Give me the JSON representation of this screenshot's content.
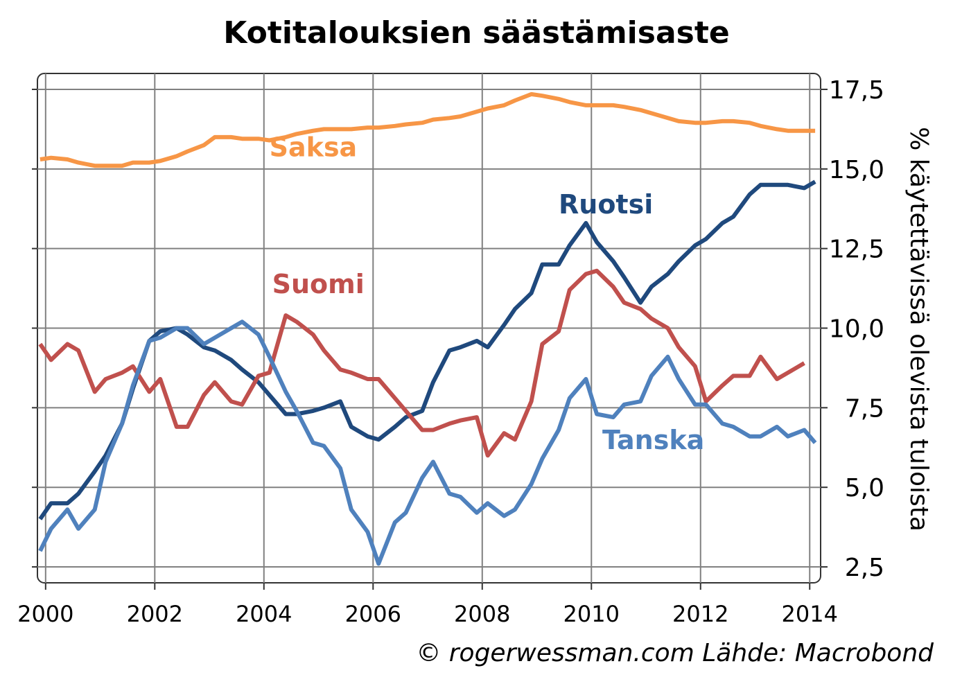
{
  "title": "Kotitalouksien säästämisaste",
  "source": "© rogerwessman.com Lähde: Macrobond",
  "chart_data": {
    "type": "line",
    "ylabel": "% käytettävissä olevista tuloista",
    "xlim": [
      1999.85,
      2014.2
    ],
    "ylim": [
      2.0,
      18.0
    ],
    "x_ticks": [
      2000,
      2002,
      2004,
      2006,
      2008,
      2010,
      2012,
      2014
    ],
    "x_tick_labels": [
      "2000",
      "2002",
      "2004",
      "2006",
      "2008",
      "2010",
      "2012",
      "2014"
    ],
    "y_ticks": [
      2.5,
      5.0,
      7.5,
      10.0,
      12.5,
      15.0,
      17.5
    ],
    "y_tick_labels": [
      "2,5",
      "5,0",
      "7,5",
      "10,0",
      "12,5",
      "15,0",
      "17,5"
    ],
    "y_axis_side": "right",
    "grid": true,
    "legend": "inline labels",
    "series": [
      {
        "name": "Saksa",
        "color": "#F79646",
        "label_at": [
          2004.1,
          15.4
        ],
        "x": [
          1999.9,
          2000.1,
          2000.4,
          2000.6,
          2000.9,
          2001.1,
          2001.4,
          2001.6,
          2001.9,
          2002.1,
          2002.4,
          2002.6,
          2002.9,
          2003.1,
          2003.4,
          2003.6,
          2003.9,
          2004.1,
          2004.4,
          2004.6,
          2004.9,
          2005.1,
          2005.4,
          2005.6,
          2005.9,
          2006.1,
          2006.4,
          2006.6,
          2006.9,
          2007.1,
          2007.4,
          2007.6,
          2007.9,
          2008.1,
          2008.4,
          2008.6,
          2008.9,
          2009.1,
          2009.4,
          2009.6,
          2009.9,
          2010.1,
          2010.4,
          2010.6,
          2010.9,
          2011.1,
          2011.4,
          2011.6,
          2011.9,
          2012.1,
          2012.4,
          2012.6,
          2012.9,
          2013.1,
          2013.4,
          2013.6,
          2013.9,
          2014.1
        ],
        "values": [
          15.3,
          15.35,
          15.3,
          15.2,
          15.1,
          15.1,
          15.1,
          15.2,
          15.2,
          15.25,
          15.4,
          15.55,
          15.75,
          16.0,
          16.0,
          15.95,
          15.95,
          15.9,
          16.0,
          16.1,
          16.2,
          16.25,
          16.25,
          16.25,
          16.3,
          16.3,
          16.35,
          16.4,
          16.45,
          16.55,
          16.6,
          16.65,
          16.8,
          16.9,
          17.0,
          17.15,
          17.35,
          17.3,
          17.2,
          17.1,
          17.0,
          17.0,
          17.0,
          16.95,
          16.85,
          16.75,
          16.6,
          16.5,
          16.45,
          16.45,
          16.5,
          16.5,
          16.45,
          16.35,
          16.25,
          16.2,
          16.2,
          16.2
        ]
      },
      {
        "name": "Ruotsi",
        "color": "#1F497D",
        "label_at": [
          2009.4,
          13.6
        ],
        "x": [
          1999.9,
          2000.1,
          2000.4,
          2000.6,
          2000.9,
          2001.1,
          2001.4,
          2001.6,
          2001.9,
          2002.1,
          2002.4,
          2002.6,
          2002.9,
          2003.1,
          2003.4,
          2003.6,
          2003.9,
          2004.1,
          2004.4,
          2004.6,
          2004.9,
          2005.1,
          2005.4,
          2005.6,
          2005.9,
          2006.1,
          2006.4,
          2006.6,
          2006.9,
          2007.1,
          2007.4,
          2007.6,
          2007.9,
          2008.1,
          2008.4,
          2008.6,
          2008.9,
          2009.1,
          2009.4,
          2009.6,
          2009.9,
          2010.1,
          2010.4,
          2010.6,
          2010.9,
          2011.1,
          2011.4,
          2011.6,
          2011.9,
          2012.1,
          2012.4,
          2012.6,
          2012.9,
          2013.1,
          2013.4,
          2013.6,
          2013.9,
          2014.1
        ],
        "values": [
          4.0,
          4.5,
          4.5,
          4.8,
          5.5,
          6.0,
          7.0,
          8.1,
          9.6,
          9.9,
          10.0,
          9.8,
          9.4,
          9.3,
          9.0,
          8.7,
          8.3,
          7.9,
          7.3,
          7.3,
          7.4,
          7.5,
          7.7,
          6.9,
          6.6,
          6.5,
          6.9,
          7.2,
          7.4,
          8.3,
          9.3,
          9.4,
          9.6,
          9.4,
          10.1,
          10.6,
          11.1,
          12.0,
          12.0,
          12.6,
          13.3,
          12.7,
          12.1,
          11.6,
          10.8,
          11.3,
          11.7,
          12.1,
          12.6,
          12.8,
          13.3,
          13.5,
          14.2,
          14.5,
          14.5,
          14.5,
          14.4,
          14.6
        ]
      },
      {
        "name": "Suomi",
        "color": "#C0504D",
        "label_at": [
          2004.15,
          11.1
        ],
        "x": [
          1999.9,
          2000.1,
          2000.4,
          2000.6,
          2000.9,
          2001.1,
          2001.4,
          2001.6,
          2001.9,
          2002.1,
          2002.4,
          2002.6,
          2002.9,
          2003.1,
          2003.4,
          2003.6,
          2003.9,
          2004.1,
          2004.4,
          2004.6,
          2004.9,
          2005.1,
          2005.4,
          2005.6,
          2005.9,
          2006.1,
          2006.4,
          2006.6,
          2006.9,
          2007.1,
          2007.4,
          2007.6,
          2007.9,
          2008.1,
          2008.4,
          2008.6,
          2008.9,
          2009.1,
          2009.4,
          2009.6,
          2009.9,
          2010.1,
          2010.4,
          2010.6,
          2010.9,
          2011.1,
          2011.4,
          2011.6,
          2011.9,
          2012.1,
          2012.4,
          2012.6,
          2012.9,
          2013.1,
          2013.4,
          2013.6,
          2013.9
        ],
        "values": [
          9.5,
          9.0,
          9.5,
          9.3,
          8.0,
          8.4,
          8.6,
          8.8,
          8.0,
          8.4,
          6.9,
          6.9,
          7.9,
          8.3,
          7.7,
          7.6,
          8.5,
          8.6,
          10.4,
          10.2,
          9.8,
          9.3,
          8.7,
          8.6,
          8.4,
          8.4,
          7.8,
          7.4,
          6.8,
          6.8,
          7.0,
          7.1,
          7.2,
          6.0,
          6.7,
          6.5,
          7.7,
          9.5,
          9.9,
          11.2,
          11.7,
          11.8,
          11.3,
          10.8,
          10.6,
          10.3,
          10.0,
          9.4,
          8.8,
          7.7,
          8.2,
          8.5,
          8.5,
          9.1,
          8.4,
          8.6,
          8.9
        ]
      },
      {
        "name": "Tanska",
        "color": "#4F81BD",
        "label_at": [
          2010.2,
          6.2
        ],
        "x": [
          1999.9,
          2000.1,
          2000.4,
          2000.6,
          2000.9,
          2001.1,
          2001.4,
          2001.6,
          2001.9,
          2002.1,
          2002.4,
          2002.6,
          2002.9,
          2003.1,
          2003.4,
          2003.6,
          2003.9,
          2004.1,
          2004.4,
          2004.6,
          2004.9,
          2005.1,
          2005.4,
          2005.6,
          2005.9,
          2006.1,
          2006.4,
          2006.6,
          2006.9,
          2007.1,
          2007.4,
          2007.6,
          2007.9,
          2008.1,
          2008.4,
          2008.6,
          2008.9,
          2009.1,
          2009.4,
          2009.6,
          2009.9,
          2010.1,
          2010.4,
          2010.6,
          2010.9,
          2011.1,
          2011.4,
          2011.6,
          2011.9,
          2012.1,
          2012.4,
          2012.6,
          2012.9,
          2013.1,
          2013.4,
          2013.6,
          2013.9,
          2014.1
        ],
        "values": [
          3.0,
          3.7,
          4.3,
          3.7,
          4.3,
          5.8,
          7.0,
          8.2,
          9.6,
          9.7,
          10.0,
          10.0,
          9.5,
          9.7,
          10.0,
          10.2,
          9.8,
          9.1,
          8.0,
          7.4,
          6.4,
          6.3,
          5.6,
          4.3,
          3.6,
          2.6,
          3.9,
          4.2,
          5.3,
          5.8,
          4.8,
          4.7,
          4.2,
          4.5,
          4.1,
          4.3,
          5.1,
          5.9,
          6.8,
          7.8,
          8.4,
          7.3,
          7.2,
          7.6,
          7.7,
          8.5,
          9.1,
          8.4,
          7.6,
          7.6,
          7.0,
          6.9,
          6.6,
          6.6,
          6.9,
          6.6,
          6.8,
          6.4
        ]
      }
    ]
  }
}
